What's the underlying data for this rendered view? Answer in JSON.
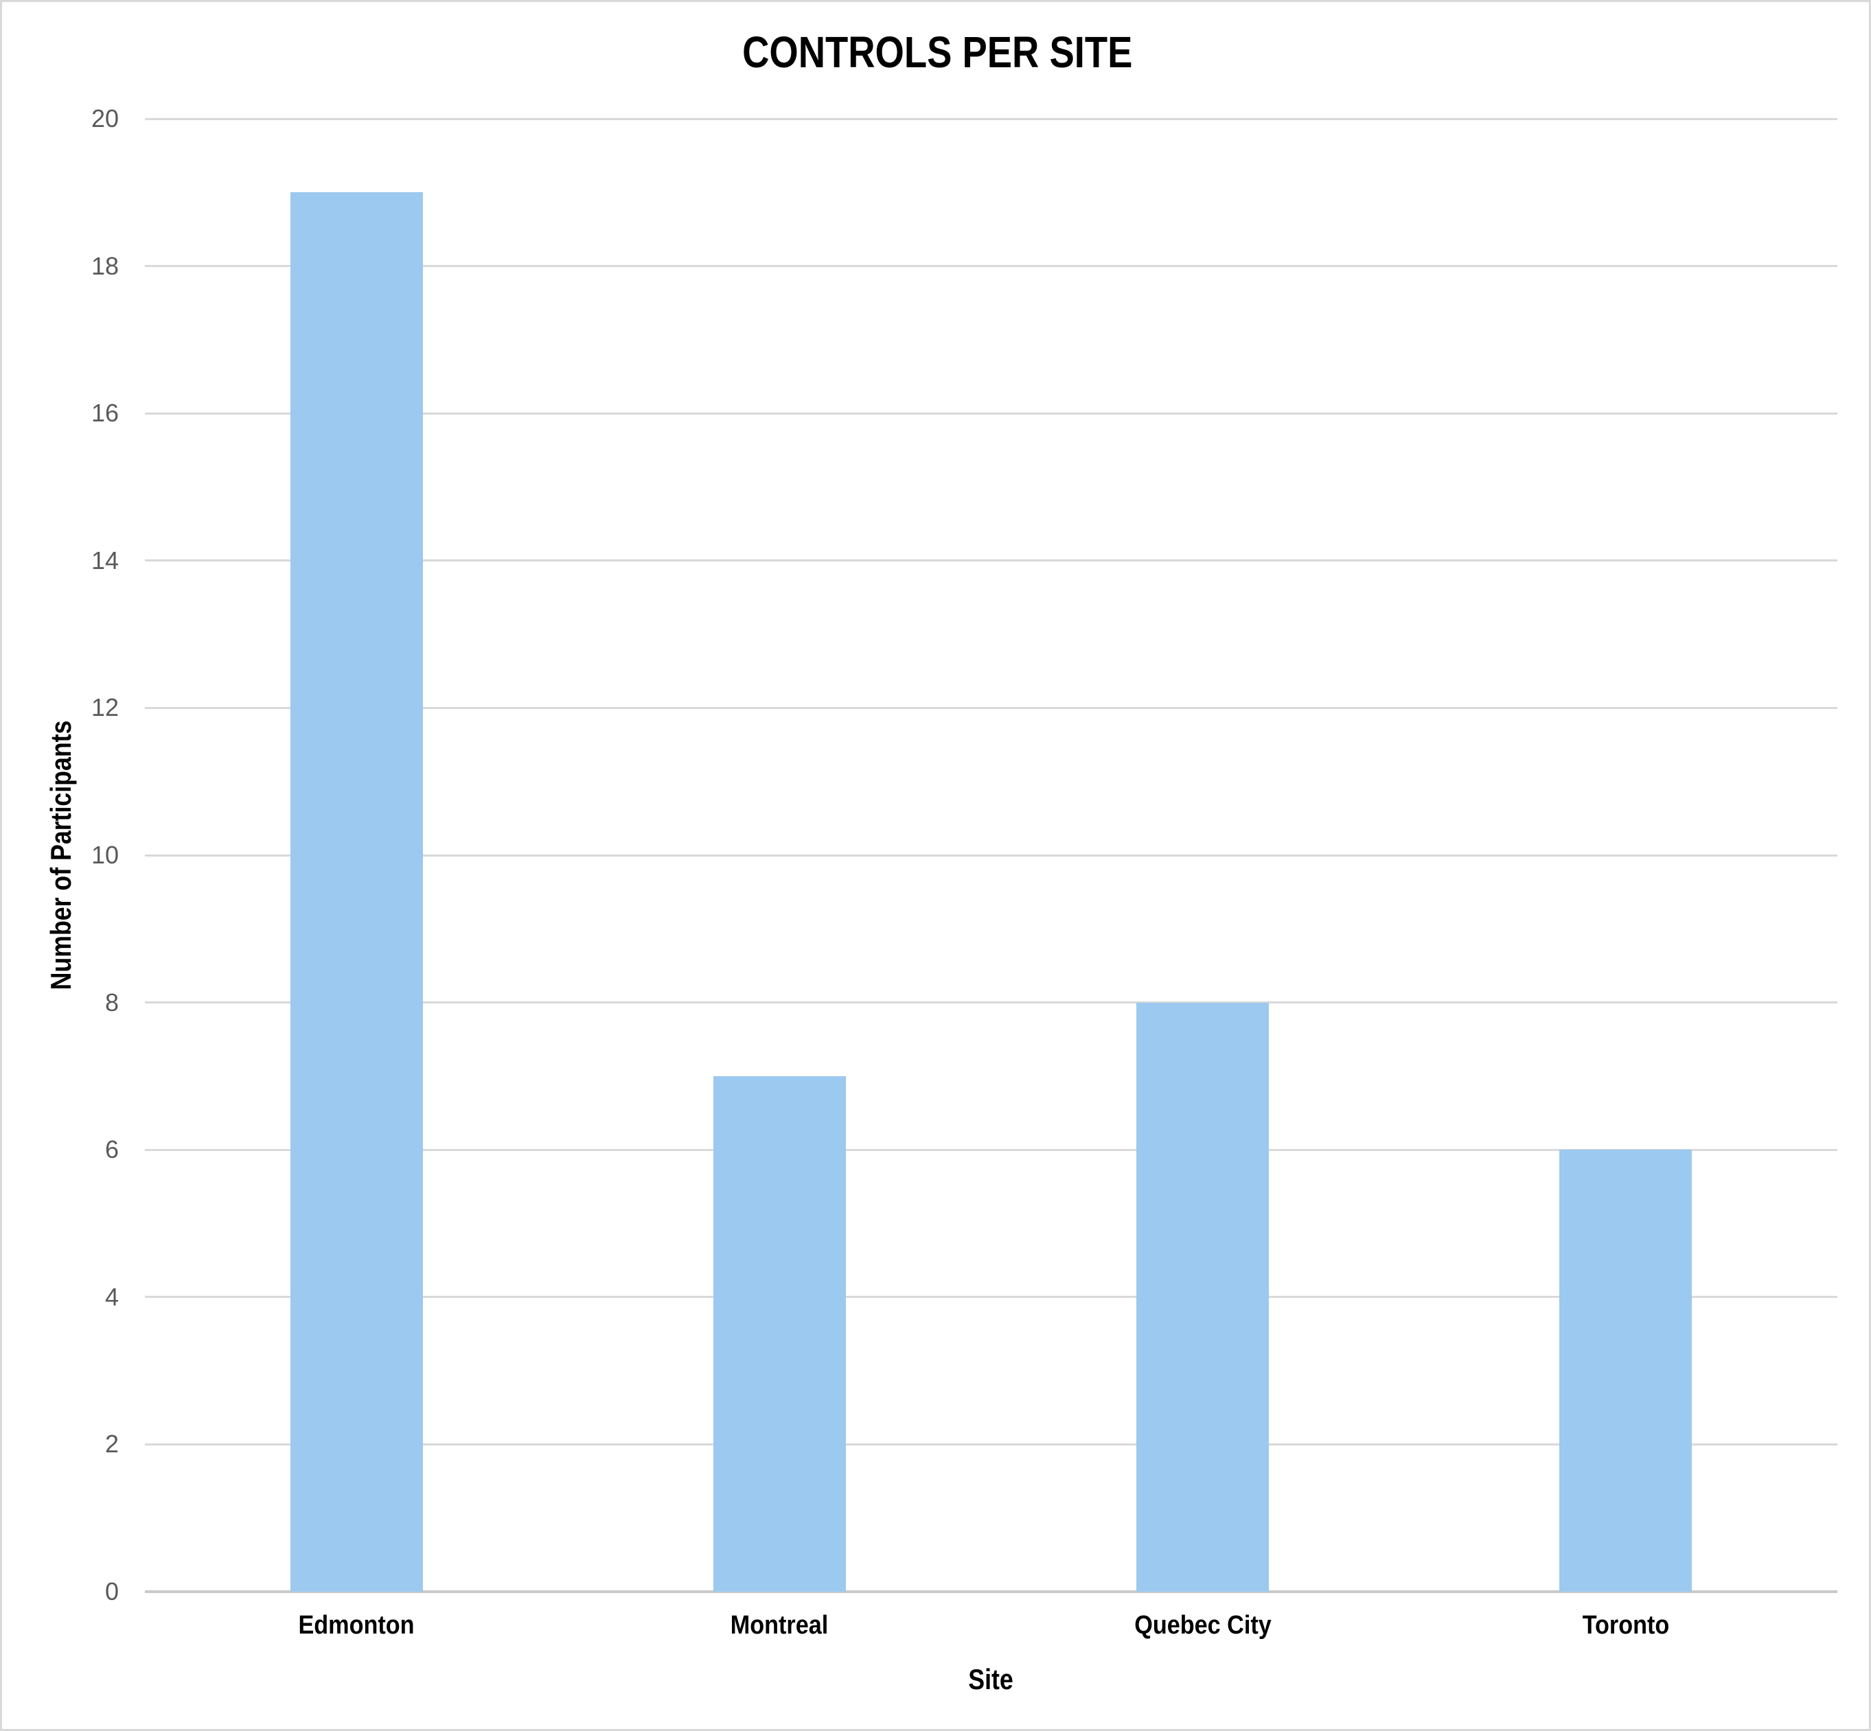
{
  "chart_data": {
    "type": "bar",
    "title": "CONTROLS PER SITE",
    "xlabel": "Site",
    "ylabel": "Number of Participants",
    "categories": [
      "Edmonton",
      "Montreal",
      "Quebec City",
      "Toronto"
    ],
    "values": [
      19,
      7,
      8,
      6
    ],
    "ylim": [
      0,
      20
    ],
    "ytick_step": 2,
    "ytick_labels": [
      "0",
      "2",
      "4",
      "6",
      "8",
      "10",
      "12",
      "14",
      "16",
      "18",
      "20"
    ],
    "grid": "horizontal",
    "legend": "none",
    "colors": {
      "bar": "#9CC9EF",
      "gridline": "#D9D9D9",
      "axis_line": "#C9C9C9",
      "tick_label": "#595959",
      "text": "#000000",
      "background": "#FFFFFF",
      "canvas_border": "#D9D9D9"
    }
  }
}
